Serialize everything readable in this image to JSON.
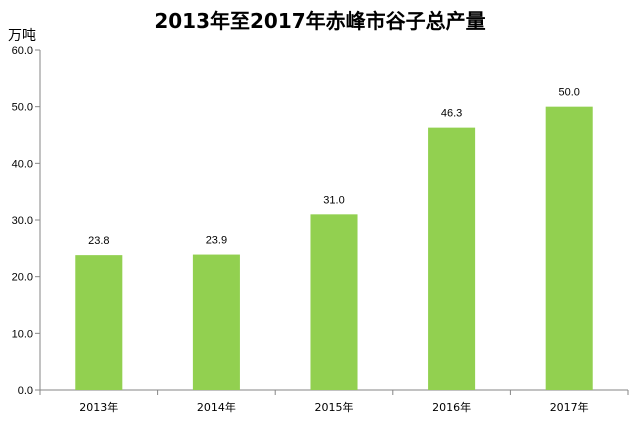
{
  "chart_data": {
    "type": "bar",
    "title": "2013年至2017年赤峰市谷子总产量",
    "unit_label": "万吨",
    "categories": [
      "2013年",
      "2014年",
      "2015年",
      "2016年",
      "2017年"
    ],
    "values": [
      23.8,
      23.9,
      31.0,
      46.3,
      50.0
    ],
    "value_labels": [
      "23.8",
      "23.9",
      "31.0",
      "46.3",
      "50.0"
    ],
    "y_ticks": [
      "0.0",
      "10.0",
      "20.0",
      "30.0",
      "40.0",
      "50.0",
      "60.0"
    ],
    "ylim": [
      0,
      60
    ],
    "grid": false,
    "bar_color": "#92d050",
    "axis_color": "#868686"
  }
}
